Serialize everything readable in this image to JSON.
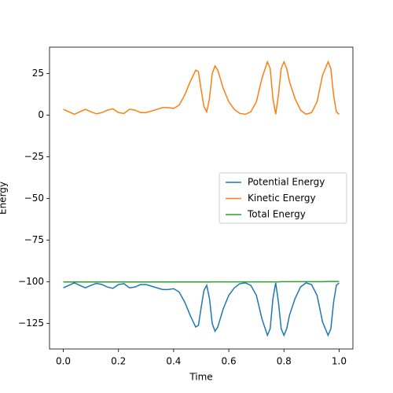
{
  "chart_data": {
    "type": "line",
    "xlabel": "Time",
    "ylabel": "Energy",
    "x": [
      0,
      0.02,
      0.04,
      0.06,
      0.08,
      0.1,
      0.12,
      0.14,
      0.16,
      0.18,
      0.2,
      0.22,
      0.24,
      0.26,
      0.28,
      0.3,
      0.32,
      0.34,
      0.36,
      0.38,
      0.4,
      0.42,
      0.44,
      0.46,
      0.48,
      0.49,
      0.5,
      0.51,
      0.52,
      0.53,
      0.54,
      0.55,
      0.56,
      0.58,
      0.6,
      0.62,
      0.64,
      0.66,
      0.68,
      0.7,
      0.72,
      0.74,
      0.75,
      0.76,
      0.77,
      0.78,
      0.79,
      0.8,
      0.81,
      0.82,
      0.84,
      0.86,
      0.88,
      0.9,
      0.92,
      0.94,
      0.96,
      0.97,
      0.98,
      0.99,
      1.0
    ],
    "series": [
      {
        "name": "Potential Energy",
        "color": "#1f77b4",
        "values": [
          -103.7,
          -102.2,
          -100.7,
          -102.2,
          -103.7,
          -102.2,
          -101,
          -101.7,
          -103.2,
          -104,
          -101.7,
          -101.2,
          -103.7,
          -103.2,
          -101.7,
          -101.7,
          -102.7,
          -103.7,
          -104.7,
          -104.7,
          -104.2,
          -106.2,
          -112.2,
          -120.2,
          -127.2,
          -126.2,
          -115.2,
          -105.2,
          -102.2,
          -110.2,
          -125.2,
          -129.7,
          -127.2,
          -116.2,
          -108.2,
          -103.7,
          -101.2,
          -100.7,
          -102.2,
          -108.2,
          -122.2,
          -132.2,
          -128.2,
          -110.2,
          -100.7,
          -112.2,
          -128.2,
          -132.2,
          -128.2,
          -120.2,
          -110.2,
          -103.2,
          -100.7,
          -101.7,
          -108.2,
          -124.2,
          -132.2,
          -128.2,
          -112.2,
          -102.2,
          -100.7
        ]
      },
      {
        "name": "Kinetic Energy",
        "color": "#ff7f0e",
        "values": [
          3.5,
          2,
          0.5,
          2,
          3.5,
          2,
          0.8,
          1.5,
          3,
          3.8,
          1.5,
          1,
          3.5,
          3,
          1.5,
          1.5,
          2.5,
          3.5,
          4.5,
          4.5,
          4,
          6,
          12,
          20,
          27,
          26,
          15,
          5,
          2,
          10,
          25,
          29.5,
          27,
          16,
          8,
          3.5,
          1,
          0.5,
          2,
          8,
          22,
          32,
          28,
          10,
          0.5,
          12,
          28,
          32,
          28,
          20,
          10,
          3,
          0.5,
          1.5,
          8,
          24,
          32,
          28,
          12,
          2,
          0.5
        ]
      },
      {
        "name": "Total Energy",
        "color": "#2ca02c",
        "values": [
          -100.2,
          -100.2,
          -100.2,
          -100.2,
          -100.2,
          -100.2,
          -100.2,
          -100.2,
          -100.2,
          -100.2,
          -100.2,
          -100.2,
          -100.2,
          -100.2,
          -100.2,
          -100.2,
          -100.2,
          -100.2,
          -100.2,
          -100.2,
          -100.2,
          -100.2,
          -100.2,
          -100.2,
          -100.2,
          -100.2,
          -100.2,
          -100.2,
          -100.2,
          -100.2,
          -100.1,
          -100.1,
          -100.1,
          -100.1,
          -100.1,
          -100.1,
          -100.1,
          -100.1,
          -100.1,
          -100.1,
          -100.1,
          -100.1,
          -100.1,
          -100.1,
          -100.1,
          -100.1,
          -100.0,
          -100.0,
          -100.0,
          -100.0,
          -100.0,
          -100.0,
          -100.0,
          -100.0,
          -100.0,
          -100.0,
          -99.9,
          -99.9,
          -99.9,
          -99.9,
          -99.9
        ]
      }
    ],
    "xlim": [
      -0.05,
      1.05
    ],
    "xticks": [
      {
        "value": 0,
        "label": "0.0"
      },
      {
        "value": 0.2,
        "label": "0.2"
      },
      {
        "value": 0.4,
        "label": "0.4"
      },
      {
        "value": 0.6,
        "label": "0.6"
      },
      {
        "value": 0.8,
        "label": "0.8"
      },
      {
        "value": 1.0,
        "label": "1.0"
      }
    ],
    "ylim": [
      -140.4,
      40.8
    ],
    "yticks": [
      {
        "value": -125,
        "label": "−125"
      },
      {
        "value": -100,
        "label": "−100"
      },
      {
        "value": -75,
        "label": "−75"
      },
      {
        "value": -50,
        "label": "−50"
      },
      {
        "value": -25,
        "label": "−25"
      },
      0,
      25
    ],
    "legend": "center right"
  }
}
